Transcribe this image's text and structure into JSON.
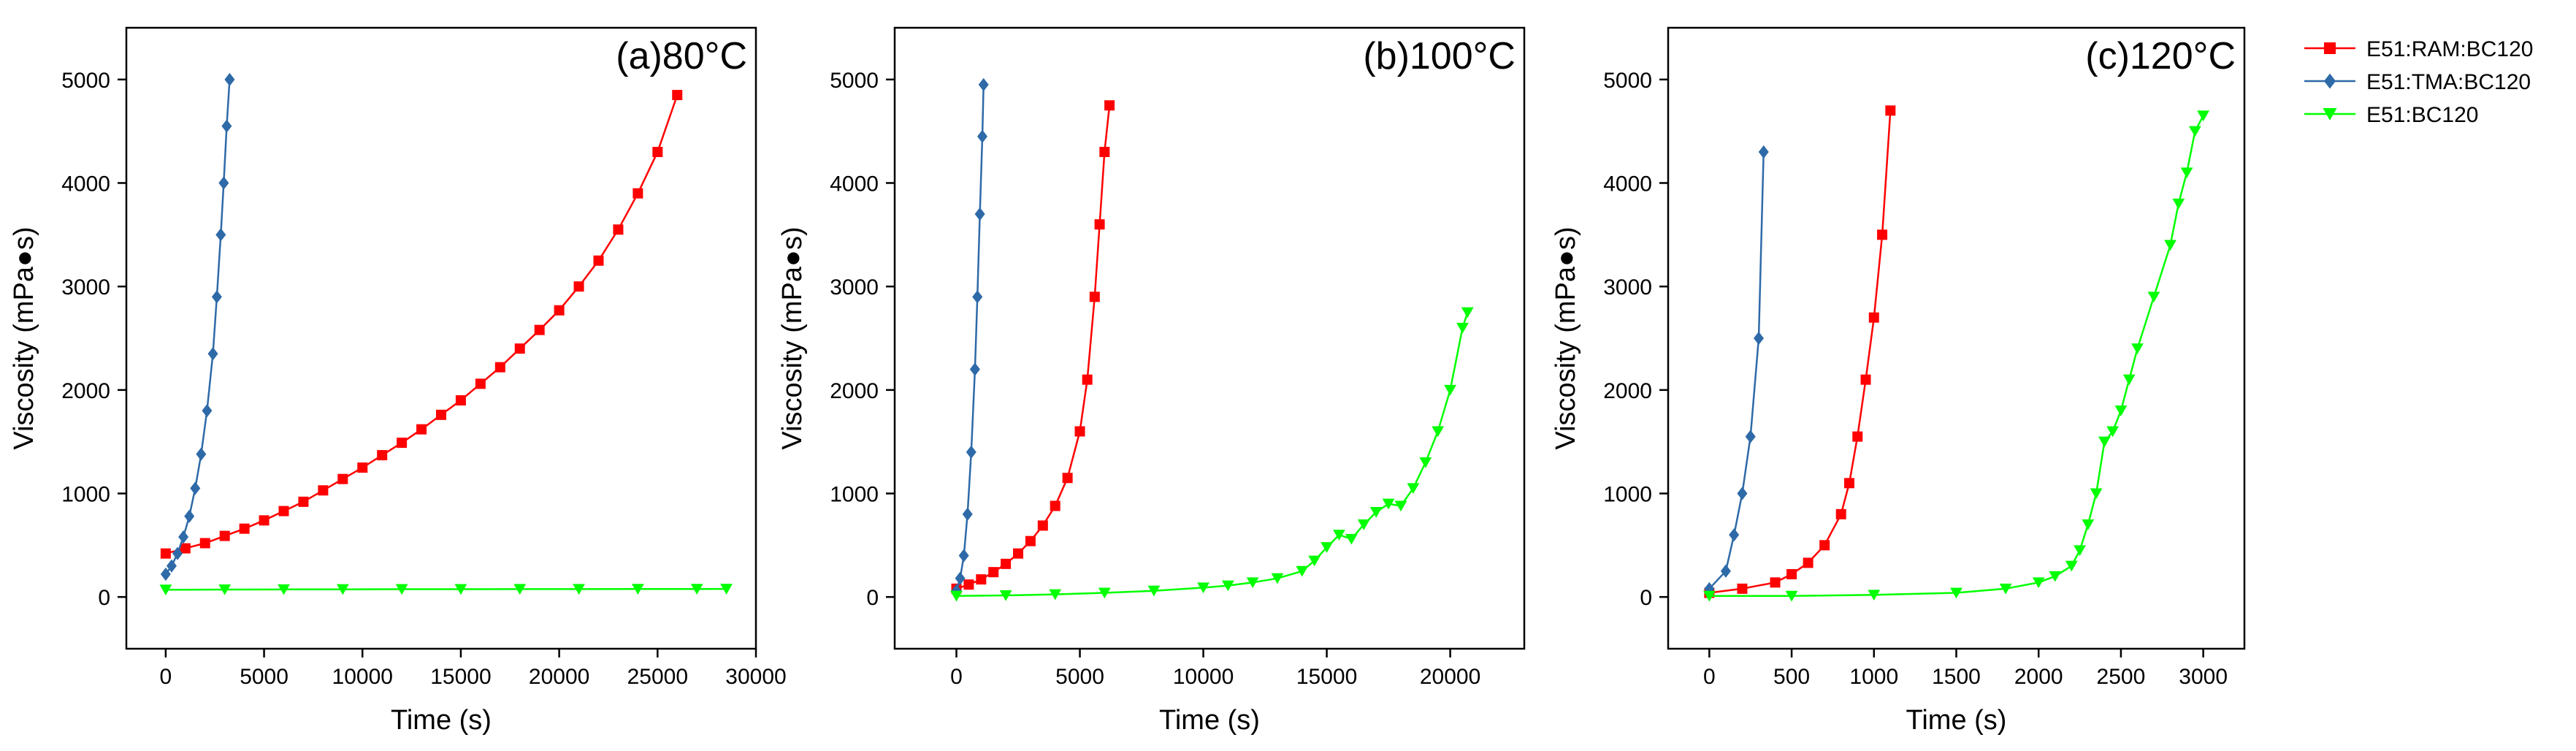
{
  "chart_data": [
    {
      "type": "line",
      "panel_label": "(a)80°C",
      "xlabel": "Time (s)",
      "ylabel": "Viscosity (mPa●s)",
      "xlim": [
        -2000,
        30000
      ],
      "ylim": [
        -500,
        5500
      ],
      "xticks": [
        0,
        5000,
        10000,
        15000,
        20000,
        25000,
        30000
      ],
      "xtick_labels": [
        "0",
        "5000",
        "10000",
        "15000",
        "20000",
        "25000",
        "30000"
      ],
      "yticks": [
        0,
        1000,
        2000,
        3000,
        4000,
        5000
      ],
      "ytick_labels": [
        "0",
        "1000",
        "2000",
        "3000",
        "4000",
        "5000"
      ],
      "series": [
        {
          "name": "E51:RAM:BC120",
          "color": "#ff0000",
          "marker": "square",
          "markers": true,
          "x": [
            0,
            1000,
            2000,
            3000,
            4000,
            5000,
            6000,
            7000,
            8000,
            9000,
            10000,
            11000,
            12000,
            13000,
            14000,
            15000,
            16000,
            17000,
            18000,
            19000,
            20000,
            21000,
            22000,
            23000,
            24000,
            25000,
            26000
          ],
          "y": [
            420,
            470,
            520,
            590,
            660,
            740,
            830,
            920,
            1030,
            1140,
            1250,
            1370,
            1490,
            1620,
            1760,
            1900,
            2060,
            2220,
            2400,
            2580,
            2770,
            3000,
            3250,
            3550,
            3900,
            4300,
            4850
          ]
        },
        {
          "name": "E51:TMA:BC120",
          "color": "#2e6aa8",
          "marker": "diamond",
          "markers": true,
          "x": [
            0,
            300,
            600,
            900,
            1200,
            1500,
            1800,
            2100,
            2400,
            2600,
            2800,
            2950,
            3100,
            3250
          ],
          "y": [
            220,
            300,
            420,
            580,
            780,
            1050,
            1380,
            1800,
            2350,
            2900,
            3500,
            4000,
            4550,
            5000
          ]
        },
        {
          "name": "E51:BC120",
          "color": "#00ff00",
          "marker": "triangle-down",
          "markers": true,
          "x": [
            0,
            3000,
            6000,
            9000,
            12000,
            15000,
            18000,
            21000,
            24000,
            27000,
            28500
          ],
          "y": [
            70,
            72,
            73,
            74,
            75,
            75,
            76,
            76,
            77,
            77,
            78
          ]
        }
      ]
    },
    {
      "type": "line",
      "panel_label": "(b)100°C",
      "xlabel": "Time (s)",
      "ylabel": "Viscosity (mPa●s)",
      "xlim": [
        -2500,
        23000
      ],
      "ylim": [
        -500,
        5500
      ],
      "xticks": [
        0,
        5000,
        10000,
        15000,
        20000
      ],
      "xtick_labels": [
        "0",
        "5000",
        "10000",
        "15000",
        "20000"
      ],
      "yticks": [
        0,
        1000,
        2000,
        3000,
        4000,
        5000
      ],
      "ytick_labels": [
        "0",
        "1000",
        "2000",
        "3000",
        "4000",
        "5000"
      ],
      "series": [
        {
          "name": "E51:RAM:BC120",
          "color": "#ff0000",
          "marker": "square",
          "markers": true,
          "x": [
            0,
            500,
            1000,
            1500,
            2000,
            2500,
            3000,
            3500,
            4000,
            4500,
            5000,
            5300,
            5600,
            5800,
            6000,
            6200
          ],
          "y": [
            80,
            120,
            170,
            240,
            320,
            420,
            540,
            690,
            880,
            1150,
            1600,
            2100,
            2900,
            3600,
            4300,
            4750
          ]
        },
        {
          "name": "E51:TMA:BC120",
          "color": "#2e6aa8",
          "marker": "diamond",
          "markers": true,
          "x": [
            0,
            150,
            300,
            450,
            600,
            750,
            850,
            950,
            1050,
            1100
          ],
          "y": [
            60,
            180,
            400,
            800,
            1400,
            2200,
            2900,
            3700,
            4450,
            4950
          ]
        },
        {
          "name": "E51:BC120",
          "color": "#00ff00",
          "marker": "triangle-down",
          "markers": true,
          "x": [
            0,
            2000,
            4000,
            6000,
            8000,
            10000,
            11000,
            12000,
            13000,
            14000,
            14500,
            15000,
            15500,
            16000,
            16500,
            17000,
            17500,
            18000,
            18500,
            19000,
            19500,
            20000,
            20500,
            20700
          ],
          "y": [
            10,
            15,
            25,
            40,
            60,
            90,
            110,
            140,
            180,
            250,
            350,
            480,
            600,
            560,
            700,
            820,
            900,
            880,
            1050,
            1300,
            1600,
            2000,
            2600,
            2750
          ]
        }
      ]
    },
    {
      "type": "line",
      "panel_label": "(c)120°C",
      "xlabel": "Time (s)",
      "ylabel": "Viscosity (mPa●s)",
      "xlim": [
        -250,
        3250
      ],
      "ylim": [
        -500,
        5500
      ],
      "xticks": [
        0,
        500,
        1000,
        1500,
        2000,
        2500,
        3000
      ],
      "xtick_labels": [
        "0",
        "500",
        "1000",
        "1500",
        "2000",
        "2500",
        "3000"
      ],
      "yticks": [
        0,
        1000,
        2000,
        3000,
        4000,
        5000
      ],
      "ytick_labels": [
        "0",
        "1000",
        "2000",
        "3000",
        "4000",
        "5000"
      ],
      "series": [
        {
          "name": "E51:RAM:BC120",
          "color": "#ff0000",
          "marker": "square",
          "markers": true,
          "x": [
            0,
            200,
            400,
            500,
            600,
            700,
            800,
            850,
            900,
            950,
            1000,
            1050,
            1100
          ],
          "y": [
            40,
            80,
            140,
            220,
            330,
            500,
            800,
            1100,
            1550,
            2100,
            2700,
            3500,
            4700
          ]
        },
        {
          "name": "E51:TMA:BC120",
          "color": "#2e6aa8",
          "marker": "diamond",
          "markers": true,
          "x": [
            0,
            100,
            150,
            200,
            250,
            300,
            330
          ],
          "y": [
            80,
            250,
            600,
            1000,
            1550,
            2500,
            4300
          ]
        },
        {
          "name": "E51:BC120",
          "color": "#00ff00",
          "marker": "triangle-down",
          "markers": true,
          "x": [
            0,
            500,
            1000,
            1500,
            1800,
            2000,
            2100,
            2200,
            2250,
            2300,
            2350,
            2400,
            2450,
            2500,
            2550,
            2600,
            2700,
            2800,
            2850,
            2900,
            2950,
            3000
          ],
          "y": [
            10,
            10,
            20,
            40,
            80,
            140,
            200,
            300,
            450,
            700,
            1000,
            1500,
            1600,
            1800,
            2100,
            2400,
            2900,
            3400,
            3800,
            4100,
            4500,
            4650
          ]
        }
      ]
    }
  ],
  "legend": {
    "placement": "outside-right",
    "entries": [
      {
        "label": "E51:RAM:BC120",
        "color": "#ff0000",
        "marker": "square"
      },
      {
        "label": "E51:TMA:BC120",
        "color": "#2e6aa8",
        "marker": "diamond"
      },
      {
        "label": "E51:BC120",
        "color": "#00ff00",
        "marker": "triangle-down"
      }
    ]
  }
}
